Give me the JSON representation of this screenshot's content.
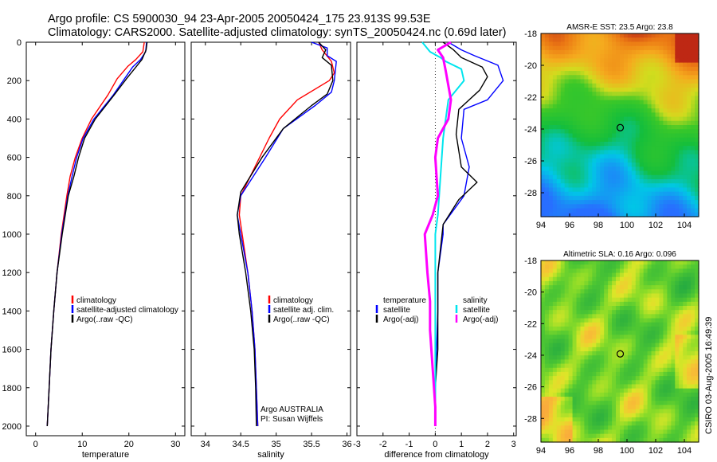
{
  "header": {
    "line1": "Argo profile: CS 5900030_94 23-Apr-2005 20050424_175 23.913S 99.53E",
    "line2": "Climatology: CARS2000. Satellite-adjusted climatology: synTS_20050424.nc (0.69d later)"
  },
  "side_note": "CSIRO 03-Aug-2005 16:49:39",
  "colors": {
    "clim": "#ff0000",
    "sat": "#0000ff",
    "argo": "#000000",
    "sal_sat": "#00e5ee",
    "sal_argo": "#ff00ff"
  },
  "chart_data": [
    {
      "id": "temperature",
      "type": "line",
      "xlabel": "temperature",
      "xlim": [
        -2,
        32
      ],
      "ylim": [
        2050,
        0
      ],
      "xticks": [
        "0",
        "10",
        "20",
        "30"
      ],
      "yticks": [
        "0",
        "200",
        "400",
        "600",
        "800",
        "1000",
        "1200",
        "1400",
        "1600",
        "1800",
        "2000"
      ],
      "legend": {
        "position": "lower-right",
        "entries": [
          "climatology",
          "satellite-adjusted climatology",
          "Argo(..raw -QC)"
        ]
      },
      "series": [
        {
          "name": "climatology",
          "color": "#ff0000",
          "x": [
            23.3,
            23.0,
            21.5,
            19.8,
            17.5,
            15.5,
            12.0,
            10.0,
            8.5,
            7.4,
            6.7,
            5.5,
            4.6,
            3.9,
            3.3,
            2.9,
            2.6,
            2.5
          ],
          "y": [
            0,
            50,
            90,
            125,
            190,
            275,
            400,
            500,
            600,
            700,
            800,
            1000,
            1200,
            1400,
            1600,
            1800,
            1950,
            2000
          ]
        },
        {
          "name": "satellite-adjusted climatology",
          "color": "#0000ff",
          "x": [
            23.8,
            23.6,
            22.5,
            20.8,
            18.8,
            16.5,
            12.5,
            10.2,
            8.8,
            7.8,
            6.9,
            5.6,
            4.6,
            3.9,
            3.3,
            2.9,
            2.6,
            2.5
          ],
          "y": [
            0,
            50,
            90,
            130,
            200,
            280,
            400,
            500,
            600,
            700,
            800,
            1000,
            1200,
            1400,
            1600,
            1800,
            1950,
            2000
          ]
        },
        {
          "name": "Argo(..raw -QC)",
          "color": "#000000",
          "x": [
            23.9,
            23.7,
            22.8,
            21.5,
            19.5,
            17.0,
            12.8,
            10.5,
            9.2,
            8.2,
            7.0,
            5.7,
            4.6,
            3.9,
            3.3,
            2.9,
            2.6,
            2.5
          ],
          "y": [
            0,
            40,
            90,
            130,
            190,
            270,
            400,
            500,
            600,
            700,
            800,
            1000,
            1200,
            1400,
            1600,
            1800,
            1950,
            2000
          ]
        }
      ]
    },
    {
      "id": "salinity",
      "type": "line",
      "xlabel": "salinity",
      "xlim": [
        33.8,
        36.05
      ],
      "ylim": [
        2050,
        0
      ],
      "xticks": [
        "34",
        "34.5",
        "35",
        "35.5",
        "36"
      ],
      "legend": {
        "position": "lower-right",
        "entries": [
          "climatology",
          "satellite adj. clim.",
          "Argo(..raw -QC)"
        ]
      },
      "annotations": [
        "Argo AUSTRALIA",
        "PI: Susan Wijffels"
      ],
      "series": [
        {
          "name": "climatology",
          "color": "#ff0000",
          "x": [
            35.6,
            35.65,
            35.78,
            35.82,
            35.75,
            35.3,
            35.05,
            34.9,
            34.7,
            34.5,
            34.48,
            34.52,
            34.6,
            34.66,
            34.7,
            34.72,
            34.74
          ],
          "y": [
            0,
            40,
            100,
            160,
            200,
            300,
            400,
            500,
            650,
            800,
            900,
            1000,
            1200,
            1400,
            1600,
            1800,
            2000
          ]
        },
        {
          "name": "satellite adj. clim.",
          "color": "#0000ff",
          "x": [
            35.5,
            35.72,
            35.72,
            35.85,
            35.82,
            35.78,
            35.55,
            35.1,
            34.85,
            34.5,
            34.45,
            34.5,
            34.6,
            34.66,
            34.7,
            34.72,
            34.74
          ],
          "y": [
            0,
            30,
            70,
            100,
            200,
            260,
            330,
            450,
            600,
            800,
            900,
            1000,
            1200,
            1400,
            1600,
            1800,
            2000
          ]
        },
        {
          "name": "Argo(..raw -QC)",
          "color": "#000000",
          "x": [
            35.6,
            35.7,
            35.65,
            35.78,
            35.8,
            35.72,
            35.5,
            35.1,
            34.8,
            34.5,
            34.45,
            34.48,
            34.57,
            34.64,
            34.69,
            34.71,
            34.72
          ],
          "y": [
            0,
            40,
            80,
            120,
            200,
            270,
            330,
            450,
            600,
            780,
            900,
            1000,
            1200,
            1400,
            1600,
            1800,
            2000
          ]
        }
      ]
    },
    {
      "id": "difference",
      "type": "line",
      "xlabel": "difference from climatology",
      "xlim": [
        -3,
        3.1
      ],
      "ylim": [
        2050,
        0
      ],
      "xticks": [
        "-3",
        "-2",
        "-1",
        "0",
        "1",
        "2",
        "3"
      ],
      "legend": {
        "position": "lower-center",
        "left": {
          "title": "temperature",
          "entries": [
            "satellite",
            "Argo(-adj)"
          ]
        },
        "right": {
          "title": "salinity",
          "entries": [
            "satellite",
            "Argo(-adj)"
          ]
        }
      },
      "series": [
        {
          "name": "temperature satellite",
          "color": "#0000ff",
          "x": [
            0.5,
            1.0,
            1.5,
            2.4,
            2.6,
            2.0,
            1.1,
            1.0,
            1.3,
            1.1,
            0.3,
            0.3,
            0.1,
            0.1,
            0.05,
            0.0,
            0.0
          ],
          "y": [
            0,
            40,
            70,
            120,
            200,
            300,
            350,
            500,
            650,
            800,
            950,
            1000,
            1200,
            1400,
            1600,
            1800,
            2000
          ]
        },
        {
          "name": "temperature Argo(-adj)",
          "color": "#000000",
          "x": [
            0.3,
            0.7,
            1.0,
            1.8,
            2.0,
            1.7,
            0.9,
            0.8,
            1.0,
            1.6,
            0.9,
            0.3,
            0.1,
            0.1,
            0.1,
            0.0,
            0.0
          ],
          "y": [
            0,
            40,
            80,
            130,
            180,
            250,
            350,
            480,
            650,
            730,
            820,
            950,
            1200,
            1400,
            1600,
            1800,
            2000
          ]
        },
        {
          "name": "salinity satellite",
          "color": "#00e5ee",
          "x": [
            -0.5,
            -0.2,
            0.2,
            0.4,
            1.0,
            1.1,
            0.5,
            0.4,
            0.3,
            0.2,
            0.1,
            0.0,
            0.0,
            0.0,
            0.0,
            0.0,
            0.0
          ],
          "y": [
            0,
            50,
            80,
            100,
            140,
            200,
            300,
            400,
            500,
            700,
            900,
            1000,
            1200,
            1400,
            1600,
            1800,
            2000
          ]
        },
        {
          "name": "salinity Argo(-adj)",
          "color": "#ff00ff",
          "x": [
            0.6,
            0.1,
            0.3,
            0.4,
            0.6,
            0.5,
            0.1,
            0.0,
            0.1,
            -0.1,
            -0.4,
            -0.3,
            -0.2,
            -0.2,
            -0.1,
            0.0,
            0.0
          ],
          "y": [
            0,
            40,
            80,
            150,
            300,
            400,
            500,
            600,
            800,
            900,
            1000,
            1200,
            1350,
            1500,
            1700,
            1900,
            2000
          ]
        }
      ]
    },
    {
      "id": "amsre_sst_map",
      "type": "heatmap",
      "title": "AMSR-E SST: 23.5 Argo: 23.8",
      "xlim": [
        94,
        105
      ],
      "ylim": [
        -29.5,
        -18
      ],
      "xticks": [
        "94",
        "96",
        "98",
        "100",
        "102",
        "104"
      ],
      "yticks": [
        "-18",
        "-20",
        "-22",
        "-24",
        "-26",
        "-28"
      ],
      "marker": {
        "x": 99.53,
        "y": -23.913
      }
    },
    {
      "id": "altimetric_sla_map",
      "type": "heatmap",
      "title": "Altimetric SLA: 0.16 Argo: 0.096",
      "xlim": [
        94,
        105
      ],
      "ylim": [
        -29.5,
        -18
      ],
      "xticks": [
        "94",
        "96",
        "98",
        "100",
        "102",
        "104"
      ],
      "yticks": [
        "-18",
        "-20",
        "-22",
        "-24",
        "-26",
        "-28"
      ],
      "marker": {
        "x": 99.53,
        "y": -23.913
      }
    }
  ]
}
